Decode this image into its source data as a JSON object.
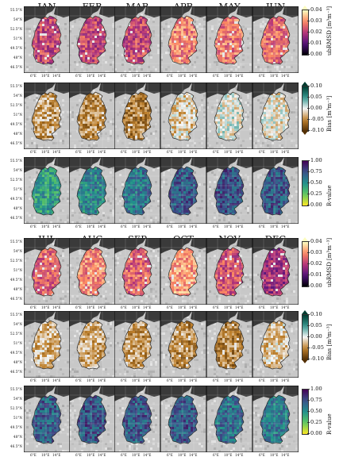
{
  "months_top": [
    "JAN",
    "FEB",
    "MAR",
    "APR",
    "MAY",
    "JUN"
  ],
  "months_bottom": [
    "JUL",
    "AUG",
    "SEP",
    "OCT",
    "NOV",
    "DEC"
  ],
  "lat_ticks": [
    "55.5°N",
    "54°N",
    "52.5°N",
    "51°N",
    "49.5°N",
    "48°N",
    "46.5°N"
  ],
  "lon_ticks": [
    "6°E",
    "10°E",
    "14°E"
  ],
  "colorbars": [
    {
      "metric": "ubRMSD",
      "label": "ubRMSD [m³m⁻³]",
      "ticks": [
        "0.04",
        "0.03",
        "0.02",
        "0.01",
        "0.00"
      ],
      "colormap": "magma",
      "range": [
        0,
        0.04
      ],
      "extend": "max"
    },
    {
      "metric": "bias",
      "label": "Bias [m³m⁻³]",
      "ticks": [
        "0.10",
        "0.05",
        "0.00",
        "-0.05",
        "-0.10"
      ],
      "colormap": "BrBG",
      "range": [
        -0.1,
        0.1
      ],
      "extend": "both"
    },
    {
      "metric": "r",
      "label": "R-value",
      "ticks": [
        "1.00",
        "0.75",
        "0.50",
        "0.25",
        "0.00"
      ],
      "colormap": "viridis_r",
      "range": [
        0,
        1
      ],
      "extend": "none"
    }
  ],
  "colors": {
    "ocean": "#3a3a3a",
    "land_outside": "#c8c8c8",
    "border": "#222222",
    "missing": "#e6e6e6"
  },
  "field_levels": {
    "ubRMSD": [
      0.55,
      0.55,
      0.55,
      0.72,
      0.7,
      0.66,
      0.64,
      0.74,
      0.64,
      0.78,
      0.58,
      0.45
    ],
    "bias": [
      0.3,
      0.27,
      0.24,
      0.42,
      0.5,
      0.47,
      0.36,
      0.32,
      0.3,
      0.26,
      0.24,
      0.4
    ],
    "r": [
      0.45,
      0.55,
      0.62,
      0.72,
      0.75,
      0.73,
      0.7,
      0.75,
      0.72,
      0.73,
      0.64,
      0.6
    ]
  }
}
